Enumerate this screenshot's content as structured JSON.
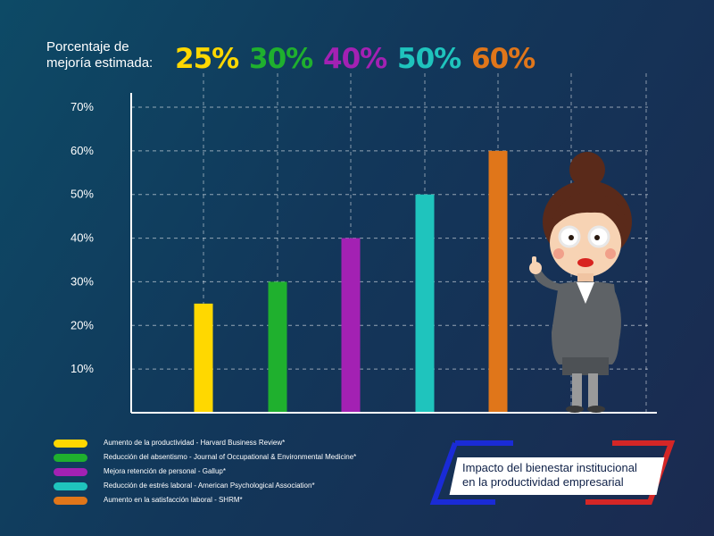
{
  "header": {
    "label": "Porcentaje de mejoría estimada:",
    "percent_labels": [
      "25%",
      "30%",
      "40%",
      "50%",
      "60%"
    ]
  },
  "chart_data": {
    "type": "bar",
    "categories": [
      "Aumento de la productividad - Harvard Business Review*",
      "Reducción del absentismo - Journal of Occupational & Environmental Medicine*",
      "Mejora retención de personal - Gallup*",
      "Reducción de estrés laboral - American Psychological Association*",
      "Aumento en la satisfacción laboral - SHRM*"
    ],
    "values": [
      25,
      30,
      40,
      50,
      60
    ],
    "colors": [
      "#ffd800",
      "#1fb02e",
      "#a321b3",
      "#1fc4bd",
      "#e0761a"
    ],
    "ylim": [
      0,
      70
    ],
    "yticks": [
      10,
      20,
      30,
      40,
      50,
      60,
      70
    ],
    "ytick_labels": [
      "10%",
      "20%",
      "30%",
      "40%",
      "50%",
      "60%",
      "70%"
    ],
    "grid": true,
    "legend_position": "bottom-left"
  },
  "title": {
    "line1": "Impacto del bienestar institucional",
    "line2": "en la productividad empresarial"
  },
  "frame_colors": {
    "blue": "#1a2bd6",
    "red": "#d42626"
  }
}
